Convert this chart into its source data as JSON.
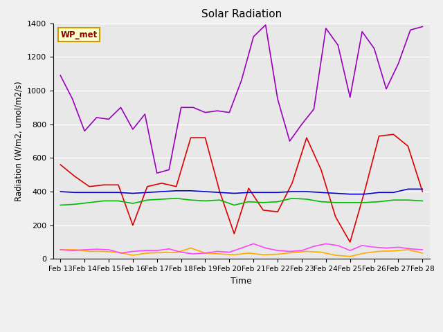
{
  "title": "Solar Radiation",
  "xlabel": "Time",
  "ylabel": "Radiation (W/m2, umol/m2/s)",
  "x_labels": [
    "Feb 13",
    "Feb 14",
    "Feb 15",
    "Feb 16",
    "Feb 17",
    "Feb 18",
    "Feb 19",
    "Feb 20",
    "Feb 21",
    "Feb 22",
    "Feb 23",
    "Feb 24",
    "Feb 25",
    "Feb 26",
    "Feb 27",
    "Feb 28"
  ],
  "ylim": [
    0,
    1400
  ],
  "yticks": [
    0,
    200,
    400,
    600,
    800,
    1000,
    1200,
    1400
  ],
  "watermark": "WP_met",
  "series": {
    "Shortwave In": {
      "color": "#dd0000",
      "linewidth": 1.2,
      "values": [
        560,
        490,
        430,
        440,
        440,
        200,
        430,
        450,
        430,
        720,
        720,
        400,
        150,
        420,
        290,
        280,
        450,
        720,
        530,
        250,
        100,
        400,
        730,
        740,
        670,
        400
      ]
    },
    "Shortwave Out": {
      "color": "#ffaa00",
      "linewidth": 1.2,
      "values": [
        55,
        55,
        45,
        45,
        40,
        22,
        35,
        38,
        38,
        65,
        35,
        30,
        25,
        35,
        25,
        28,
        38,
        45,
        40,
        22,
        15,
        35,
        45,
        48,
        55,
        35
      ]
    },
    "Longwave In": {
      "color": "#00bb00",
      "linewidth": 1.2,
      "values": [
        320,
        325,
        335,
        345,
        345,
        330,
        350,
        355,
        360,
        350,
        345,
        350,
        320,
        340,
        335,
        340,
        360,
        355,
        340,
        335,
        335,
        335,
        340,
        350,
        350,
        345
      ]
    },
    "Longwave Out": {
      "color": "#0000cc",
      "linewidth": 1.2,
      "values": [
        400,
        395,
        395,
        395,
        395,
        390,
        395,
        400,
        405,
        405,
        400,
        395,
        390,
        395,
        395,
        395,
        400,
        400,
        395,
        390,
        385,
        385,
        395,
        395,
        415,
        415
      ]
    },
    "PAR in": {
      "color": "#9900bb",
      "linewidth": 1.2,
      "values": [
        1090,
        950,
        760,
        840,
        830,
        900,
        770,
        860,
        510,
        530,
        900,
        900,
        870,
        880,
        870,
        1060,
        1320,
        1390,
        950,
        700,
        800,
        890,
        1370,
        1270,
        960,
        1350,
        1250,
        1010,
        1160,
        1360,
        1380
      ]
    },
    "PAR out": {
      "color": "#ff44ff",
      "linewidth": 1.2,
      "values": [
        55,
        50,
        55,
        58,
        55,
        35,
        45,
        50,
        50,
        60,
        40,
        30,
        35,
        45,
        40,
        65,
        90,
        65,
        50,
        45,
        50,
        75,
        90,
        80,
        50,
        80,
        70,
        65,
        70,
        60,
        55
      ]
    }
  }
}
